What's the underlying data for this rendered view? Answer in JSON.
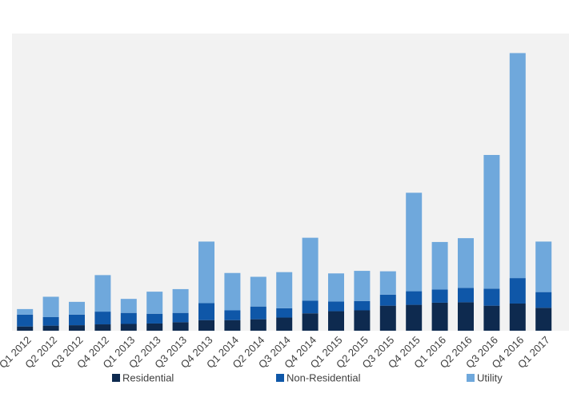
{
  "chart_data": {
    "type": "stacked_bar",
    "categories": [
      "Q1 2012",
      "Q2 2012",
      "Q3 2012",
      "Q4 2012",
      "Q1 2013",
      "Q2 2013",
      "Q3 2013",
      "Q4 2013",
      "Q1 2014",
      "Q2 2014",
      "Q3 2014",
      "Q4 2014",
      "Q1 2015",
      "Q2 2015",
      "Q3 2015",
      "Q4 2015",
      "Q1 2016",
      "Q2 2016",
      "Q3 2016",
      "Q4 2016",
      "Q1 2017"
    ],
    "series": [
      {
        "name": "Residential",
        "color": "#0e2a4f",
        "values": [
          100,
          120,
          130,
          150,
          160,
          170,
          200,
          250,
          250,
          270,
          310,
          410,
          460,
          480,
          590,
          610,
          660,
          670,
          590,
          640,
          540
        ]
      },
      {
        "name": "Non-Residential",
        "color": "#0f57a8",
        "values": [
          280,
          200,
          250,
          300,
          260,
          230,
          220,
          400,
          230,
          300,
          220,
          300,
          230,
          220,
          260,
          320,
          310,
          340,
          400,
          600,
          370
        ]
      },
      {
        "name": "Utility",
        "color": "#6fa8dc",
        "values": [
          130,
          480,
          300,
          860,
          330,
          520,
          560,
          1450,
          880,
          700,
          850,
          1480,
          660,
          710,
          550,
          2320,
          1120,
          1170,
          3150,
          5300,
          1190
        ]
      }
    ],
    "ylim": [
      0,
      7000
    ]
  }
}
